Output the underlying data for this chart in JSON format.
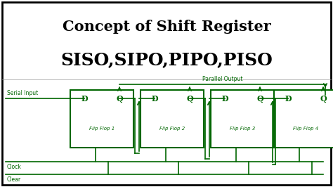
{
  "title_line1": "Concept of Shift Register",
  "title_line2": "SISO,SIPO,PIPO,PISO",
  "title_color": "#000000",
  "bg_color": "#ffffff",
  "border_color": "#000000",
  "circuit_color": "#006600",
  "flip_flops": [
    "Flip Flop 1",
    "Flip Flop 2",
    "Flip Flop 3",
    "Flip Flop 4"
  ],
  "parallel_output_label": "Parallel Output",
  "serial_input_label": "Serial Input",
  "clock_label": "Clock",
  "clear_label": "Clear",
  "title_fontsize": 15,
  "subtitle_fontsize": 18,
  "label_fontsize": 5.5,
  "dq_fontsize": 8,
  "ff_label_fontsize": 5.0
}
